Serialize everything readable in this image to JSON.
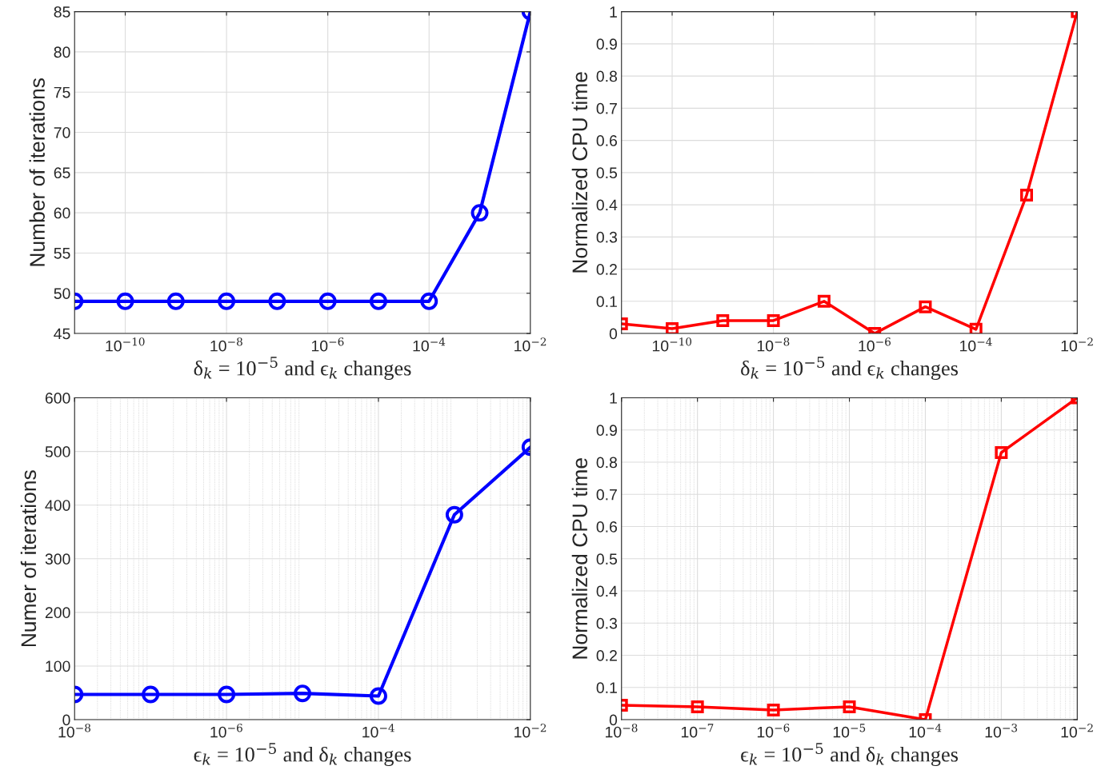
{
  "chart_data": [
    {
      "type": "line",
      "xlabel": "δ$_{k}$ = 10$^{−5}$ and ϵ$_{k}$ changes",
      "ylabel": "Number of iterations",
      "log": "x",
      "grid": true,
      "marker": "circle",
      "line_style": "solid",
      "x": [
        1e-11,
        1e-10,
        1e-09,
        1e-08,
        1e-07,
        1e-06,
        1e-05,
        0.0001,
        0.001,
        0.01
      ],
      "series": [
        {
          "color": "#0000ff",
          "values": [
            49,
            49,
            49,
            49,
            49,
            49,
            49,
            49,
            60,
            85
          ]
        }
      ],
      "xlim": [
        1e-11,
        0.01
      ],
      "xticks": [
        {
          "value": 1e-10,
          "label": "10$^{−10}$"
        },
        {
          "value": 1e-08,
          "label": "10$^{−8}$"
        },
        {
          "value": 1e-06,
          "label": "10$^{−6}$"
        },
        {
          "value": 0.0001,
          "label": "10$^{−4}$"
        },
        {
          "value": 0.01,
          "label": "10$^{−2}$"
        }
      ],
      "ylim": [
        45,
        85
      ],
      "yticks": [
        45,
        50,
        55,
        60,
        65,
        70,
        75,
        80,
        85
      ]
    },
    {
      "type": "line",
      "xlabel": "δ$_{k}$ = 10$^{−5}$ and ϵ$_{k}$ changes",
      "ylabel": "Normalized CPU time",
      "log": "x",
      "grid": true,
      "marker": "square",
      "line_style": "solid",
      "x": [
        1e-11,
        1e-10,
        1e-09,
        1e-08,
        1e-07,
        1e-06,
        1e-05,
        0.0001,
        0.001,
        0.01
      ],
      "series": [
        {
          "color": "#ff0000",
          "values": [
            0.03,
            0.015,
            0.04,
            0.04,
            0.1,
            0,
            0.083,
            0.013,
            0.43,
            1
          ]
        }
      ],
      "xlim": [
        1e-11,
        0.01
      ],
      "xticks": [
        {
          "value": 1e-10,
          "label": "10$^{−10}$"
        },
        {
          "value": 1e-08,
          "label": "10$^{−8}$"
        },
        {
          "value": 1e-06,
          "label": "10$^{−6}$"
        },
        {
          "value": 0.0001,
          "label": "10$^{−4}$"
        },
        {
          "value": 0.01,
          "label": "10$^{−2}$"
        }
      ],
      "ylim": [
        0,
        1
      ],
      "yticks": [
        0,
        0.1,
        0.2,
        0.3,
        0.4,
        0.5,
        0.6,
        0.7,
        0.8,
        0.9,
        1
      ]
    },
    {
      "type": "line",
      "xlabel": "ϵ$_{k}$ = 10$^{−5}$ and δ$_{k}$ changes",
      "ylabel": "Numer of iterations",
      "log": "x",
      "grid": true,
      "marker": "circle",
      "line_style": "solid",
      "x": [
        1e-08,
        1e-07,
        1e-06,
        1e-05,
        0.0001,
        0.001,
        0.01
      ],
      "series": [
        {
          "color": "#0000ff",
          "values": [
            47,
            47,
            47,
            49,
            44,
            382,
            508
          ]
        }
      ],
      "xlim": [
        1e-08,
        0.01
      ],
      "xticks": [
        {
          "value": 1e-08,
          "label": "10$^{−8}$"
        },
        {
          "value": 1e-06,
          "label": "10$^{−6}$"
        },
        {
          "value": 0.0001,
          "label": "10$^{−4}$"
        },
        {
          "value": 0.01,
          "label": "10$^{−2}$"
        }
      ],
      "ylim": [
        0,
        600
      ],
      "yticks": [
        0,
        100,
        200,
        300,
        400,
        500,
        600
      ]
    },
    {
      "type": "line",
      "xlabel": "ϵ$_{k}$ = 10$^{−5}$ and δ$_{k}$ changes",
      "ylabel": "Normalized CPU time",
      "log": "x",
      "grid": true,
      "marker": "square",
      "line_style": "solid",
      "x": [
        1e-08,
        1e-07,
        1e-06,
        1e-05,
        0.0001,
        0.001,
        0.01
      ],
      "series": [
        {
          "color": "#ff0000",
          "values": [
            0.045,
            0.04,
            0.03,
            0.04,
            0,
            0.83,
            1
          ]
        }
      ],
      "xlim": [
        1e-08,
        0.01
      ],
      "xticks": [
        {
          "value": 1e-08,
          "label": "10$^{−8}$"
        },
        {
          "value": 1e-07,
          "label": "10$^{−7}$"
        },
        {
          "value": 1e-06,
          "label": "10$^{−6}$"
        },
        {
          "value": 1e-05,
          "label": "10$^{−5}$"
        },
        {
          "value": 0.0001,
          "label": "10$^{−4}$"
        },
        {
          "value": 0.001,
          "label": "10$^{−3}$"
        },
        {
          "value": 0.01,
          "label": "10$^{−2}$"
        }
      ],
      "ylim": [
        0,
        1
      ],
      "yticks": [
        0,
        0.1,
        0.2,
        0.3,
        0.4,
        0.5,
        0.6,
        0.7,
        0.8,
        0.9,
        1
      ]
    }
  ]
}
